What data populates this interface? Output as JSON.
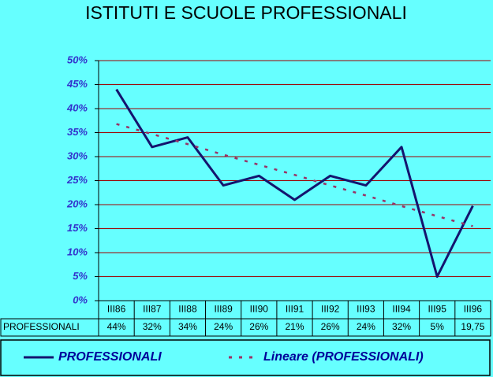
{
  "chart_data": {
    "type": "line",
    "title": "ISTITUTI E SCUOLE PROFESSIONALI",
    "categories": [
      "III86",
      "III87",
      "III88",
      "III89",
      "III90",
      "III91",
      "III92",
      "III93",
      "III94",
      "III95",
      "III96"
    ],
    "series": [
      {
        "name": "PROFESSIONALI",
        "color": "#14146e",
        "style": "solid",
        "values": [
          44,
          32,
          34,
          24,
          26,
          21,
          26,
          24,
          32,
          5,
          19.75
        ],
        "value_labels": [
          "44%",
          "32%",
          "34%",
          "24%",
          "26%",
          "21%",
          "26%",
          "24%",
          "32%",
          "5%",
          "19,75"
        ]
      },
      {
        "name": "Lineare (PROFESSIONALI)",
        "color": "#993366",
        "style": "dotted",
        "values": [
          36.8,
          34.7,
          32.6,
          30.4,
          28.3,
          26.2,
          24.0,
          21.9,
          19.7,
          17.6,
          15.5
        ]
      }
    ],
    "ylim": [
      0,
      50
    ],
    "yticks": [
      {
        "value": 0,
        "label": "0%"
      },
      {
        "value": 5,
        "label": "5%"
      },
      {
        "value": 10,
        "label": "10%"
      },
      {
        "value": 15,
        "label": "15%"
      },
      {
        "value": 20,
        "label": "20%"
      },
      {
        "value": 25,
        "label": "25%"
      },
      {
        "value": 30,
        "label": "30%"
      },
      {
        "value": 35,
        "label": "35%"
      },
      {
        "value": 40,
        "label": "40%"
      },
      {
        "value": 45,
        "label": "45%"
      },
      {
        "value": 50,
        "label": "50%"
      }
    ],
    "grid": true
  }
}
